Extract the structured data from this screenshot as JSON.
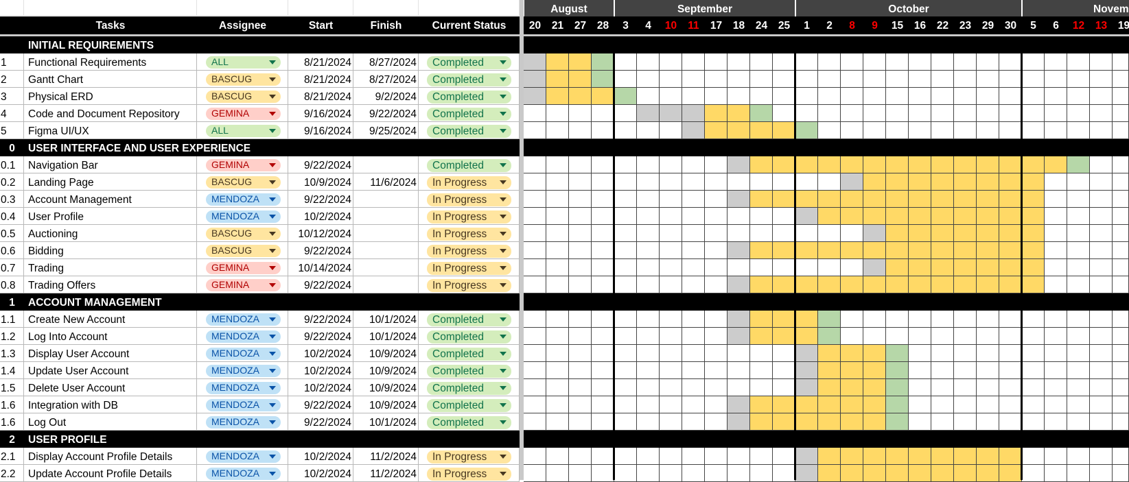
{
  "header": {
    "columns": [
      "Tasks",
      "Assignee",
      "Start",
      "Finish",
      "Current Status"
    ],
    "months": [
      {
        "label": "August",
        "from": 0,
        "to": 3
      },
      {
        "label": "September",
        "from": 4,
        "to": 11
      },
      {
        "label": "October",
        "from": 12,
        "to": 21
      },
      {
        "label": "Novemb",
        "from": 22,
        "to": 26
      }
    ],
    "days": [
      {
        "d": "20"
      },
      {
        "d": "21"
      },
      {
        "d": "27"
      },
      {
        "d": "28"
      },
      {
        "d": "3"
      },
      {
        "d": "4"
      },
      {
        "d": "10",
        "red": true
      },
      {
        "d": "11",
        "red": true
      },
      {
        "d": "17"
      },
      {
        "d": "18"
      },
      {
        "d": "24"
      },
      {
        "d": "25"
      },
      {
        "d": "1"
      },
      {
        "d": "2"
      },
      {
        "d": "8",
        "red": true
      },
      {
        "d": "9",
        "red": true
      },
      {
        "d": "15"
      },
      {
        "d": "16"
      },
      {
        "d": "22"
      },
      {
        "d": "23"
      },
      {
        "d": "29"
      },
      {
        "d": "30"
      },
      {
        "d": "5"
      },
      {
        "d": "6"
      },
      {
        "d": "12",
        "red": true
      },
      {
        "d": "13",
        "red": true
      },
      {
        "d": "19"
      }
    ]
  },
  "assignee_styles": {
    "ALL": {
      "bg": "#d4edbc",
      "fg": "#11734b"
    },
    "BASCUG": {
      "bg": "#ffe5a0",
      "fg": "#473821"
    },
    "GEMINA": {
      "bg": "#ffcfc9",
      "fg": "#b10202"
    },
    "MENDOZA": {
      "bg": "#bfe1f6",
      "fg": "#0a53a8"
    }
  },
  "status_styles": {
    "Completed": {
      "bg": "#d4edbc",
      "fg": "#11734b"
    },
    "In Progress": {
      "bg": "#ffe5a0",
      "fg": "#473821"
    }
  },
  "colors": {
    "yellow": "#ffd966",
    "green": "#b6d7a8",
    "gray": "#cccccc",
    "weekend_red": "#ff0000"
  },
  "rows": [
    {
      "section": true,
      "num": "",
      "task": "INITIAL REQUIREMENTS"
    },
    {
      "num": "1",
      "task": "Functional Requirements",
      "assignee": "ALL",
      "start": "8/21/2024",
      "finish": "8/27/2024",
      "status": "Completed",
      "gray": [
        0
      ],
      "yellow": [
        1,
        2
      ],
      "green": [
        3
      ]
    },
    {
      "num": "2",
      "task": "Gantt Chart",
      "assignee": "BASCUG",
      "start": "8/21/2024",
      "finish": "8/27/2024",
      "status": "Completed",
      "gray": [
        0
      ],
      "yellow": [
        1,
        2
      ],
      "green": [
        3
      ]
    },
    {
      "num": "3",
      "task": "Physical ERD",
      "assignee": "BASCUG",
      "start": "8/21/2024",
      "finish": "9/2/2024",
      "status": "Completed",
      "gray": [
        0
      ],
      "yellow": [
        1,
        2,
        3
      ],
      "green": [
        4
      ]
    },
    {
      "num": "4",
      "task": "Code and Document Repository",
      "assignee": "GEMINA",
      "start": "9/16/2024",
      "finish": "9/22/2024",
      "status": "Completed",
      "gray": [
        5,
        6,
        7
      ],
      "yellow": [
        8,
        9
      ],
      "green": [
        10
      ]
    },
    {
      "num": "5",
      "task": "Figma UI/UX",
      "assignee": "ALL",
      "start": "9/16/2024",
      "finish": "9/25/2024",
      "status": "Completed",
      "gray": [
        7
      ],
      "yellow": [
        8,
        9,
        10,
        11
      ],
      "green": [
        12
      ]
    },
    {
      "section": true,
      "num": "0",
      "task": "USER INTERFACE AND USER EXPERIENCE"
    },
    {
      "num": "0.1",
      "task": "Navigation Bar",
      "assignee": "GEMINA",
      "start": "9/22/2024",
      "finish": "",
      "status": "Completed",
      "gray": [
        9
      ],
      "yellow": [
        10,
        11,
        12,
        13,
        14,
        15,
        16,
        17,
        18,
        19,
        20,
        21,
        22,
        23
      ],
      "green": [
        24
      ]
    },
    {
      "num": "0.2",
      "task": "Landing Page",
      "assignee": "BASCUG",
      "start": "10/9/2024",
      "finish": "11/6/2024",
      "status": "In Progress",
      "gray": [
        14
      ],
      "yellow": [
        15,
        16,
        17,
        18,
        19,
        20,
        21,
        22
      ],
      "green": []
    },
    {
      "num": "0.3",
      "task": "Account Management",
      "assignee": "MENDOZA",
      "start": "9/22/2024",
      "finish": "",
      "status": "In Progress",
      "gray": [
        9
      ],
      "yellow": [
        10,
        11,
        12,
        13,
        14,
        15,
        16,
        17,
        18,
        19,
        20,
        21,
        22
      ],
      "green": []
    },
    {
      "num": "0.4",
      "task": "User Profile",
      "assignee": "MENDOZA",
      "start": "10/2/2024",
      "finish": "",
      "status": "In Progress",
      "gray": [
        12
      ],
      "yellow": [
        13,
        14,
        15,
        16,
        17,
        18,
        19,
        20,
        21,
        22
      ],
      "green": []
    },
    {
      "num": "0.5",
      "task": "Auctioning",
      "assignee": "BASCUG",
      "start": "10/12/2024",
      "finish": "",
      "status": "In Progress",
      "gray": [
        15
      ],
      "yellow": [
        16,
        17,
        18,
        19,
        20,
        21,
        22
      ],
      "green": []
    },
    {
      "num": "0.6",
      "task": "Bidding",
      "assignee": "BASCUG",
      "start": "9/22/2024",
      "finish": "",
      "status": "In Progress",
      "gray": [
        9
      ],
      "yellow": [
        10,
        11,
        12,
        13,
        14,
        15,
        16,
        17,
        18,
        19,
        20,
        21,
        22
      ],
      "green": []
    },
    {
      "num": "0.7",
      "task": "Trading",
      "assignee": "GEMINA",
      "start": "10/14/2024",
      "finish": "",
      "status": "In Progress",
      "gray": [
        15
      ],
      "yellow": [
        16,
        17,
        18,
        19,
        20,
        21,
        22
      ],
      "green": []
    },
    {
      "num": "0.8",
      "task": "Trading Offers",
      "assignee": "GEMINA",
      "start": "9/22/2024",
      "finish": "",
      "status": "In Progress",
      "gray": [
        9
      ],
      "yellow": [
        10,
        11,
        12,
        13,
        14,
        15,
        16,
        17,
        18,
        19,
        20,
        21,
        22
      ],
      "green": []
    },
    {
      "section": true,
      "num": "1",
      "task": "ACCOUNT MANAGEMENT"
    },
    {
      "num": "1.1",
      "task": "Create New Account",
      "assignee": "MENDOZA",
      "start": "9/22/2024",
      "finish": "10/1/2024",
      "status": "Completed",
      "gray": [
        9
      ],
      "yellow": [
        10,
        11,
        12
      ],
      "green": [
        13
      ]
    },
    {
      "num": "1.2",
      "task": "Log Into Account",
      "assignee": "MENDOZA",
      "start": "9/22/2024",
      "finish": "10/1/2024",
      "status": "Completed",
      "gray": [
        9
      ],
      "yellow": [
        10,
        11,
        12
      ],
      "green": [
        13
      ]
    },
    {
      "num": "1.3",
      "task": "Display User Account",
      "assignee": "MENDOZA",
      "start": "10/2/2024",
      "finish": "10/9/2024",
      "status": "Completed",
      "gray": [
        12
      ],
      "yellow": [
        13,
        14,
        15
      ],
      "green": [
        16
      ]
    },
    {
      "num": "1.4",
      "task": "Update User Account",
      "assignee": "MENDOZA",
      "start": "10/2/2024",
      "finish": "10/9/2024",
      "status": "Completed",
      "gray": [
        12
      ],
      "yellow": [
        13,
        14,
        15
      ],
      "green": [
        16
      ]
    },
    {
      "num": "1.5",
      "task": "Delete User Account",
      "assignee": "MENDOZA",
      "start": "10/2/2024",
      "finish": "10/9/2024",
      "status": "Completed",
      "gray": [
        12
      ],
      "yellow": [
        13,
        14,
        15
      ],
      "green": [
        16
      ]
    },
    {
      "num": "1.6",
      "task": "Integration with DB",
      "assignee": "MENDOZA",
      "start": "9/22/2024",
      "finish": "10/9/2024",
      "status": "Completed",
      "gray": [
        9
      ],
      "yellow": [
        10,
        11,
        12,
        13,
        14,
        15
      ],
      "green": [
        16
      ]
    },
    {
      "num": "1.6",
      "task": "Log Out",
      "assignee": "MENDOZA",
      "start": "9/22/2024",
      "finish": "10/1/2024",
      "status": "Completed",
      "gray": [
        9
      ],
      "yellow": [
        10,
        11,
        12,
        13,
        14,
        15
      ],
      "green": [
        16
      ]
    },
    {
      "section": true,
      "num": "2",
      "task": "USER PROFILE"
    },
    {
      "num": "2.1",
      "task": "Display Account Profile Details",
      "assignee": "MENDOZA",
      "start": "10/2/2024",
      "finish": "11/2/2024",
      "status": "In Progress",
      "gray": [
        12
      ],
      "yellow": [
        13,
        14,
        15,
        16,
        17,
        18,
        19,
        20,
        21
      ],
      "green": []
    },
    {
      "num": "2.2",
      "task": "Update Account Profile Details",
      "assignee": "MENDOZA",
      "start": "10/2/2024",
      "finish": "11/2/2024",
      "status": "In Progress",
      "gray": [
        12
      ],
      "yellow": [
        13,
        14,
        15,
        16,
        17,
        18,
        19,
        20,
        21
      ],
      "green": []
    }
  ]
}
